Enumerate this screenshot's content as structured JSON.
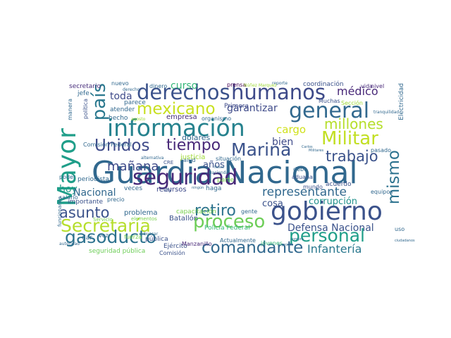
{
  "words": [
    {
      "text": "Guardia Nacional",
      "color": "#31688e"
    },
    {
      "text": "gobierno",
      "color": "#3b528b"
    },
    {
      "text": "información",
      "color": "#26828e"
    },
    {
      "text": "seguridad",
      "color": "#482878"
    },
    {
      "text": "general",
      "color": "#31688e"
    },
    {
      "text": "humanos",
      "color": "#3e4a89"
    },
    {
      "text": "derechos",
      "color": "#3b528b"
    },
    {
      "text": "Militar",
      "color": "#c2df23"
    },
    {
      "text": "Secretaría",
      "color": "#b5de2b"
    },
    {
      "text": "proceso",
      "color": "#6ece58"
    },
    {
      "text": "personal",
      "color": "#1f9e89"
    },
    {
      "text": "Marina",
      "color": "#3b528b"
    },
    {
      "text": "comandante",
      "color": "#31688e"
    },
    {
      "text": "gasoducto",
      "color": "#2c728e"
    },
    {
      "text": "mexicano",
      "color": "#c8e020"
    },
    {
      "text": "Unidos",
      "color": "#3e4a89"
    },
    {
      "text": "Mayor",
      "color": "#1f9e89"
    },
    {
      "text": "país",
      "color": "#2a788e"
    },
    {
      "text": "retiro",
      "color": "#2c728e"
    },
    {
      "text": "trabajo",
      "color": "#3b528b"
    },
    {
      "text": "millones",
      "color": "#b5de2b"
    },
    {
      "text": "mismo",
      "color": "#2c728e"
    },
    {
      "text": "representante",
      "color": "#31688e"
    },
    {
      "text": "asunto",
      "color": "#3b528b"
    },
    {
      "text": "tiempo",
      "color": "#482878"
    },
    {
      "text": "mañana",
      "color": "#3e4a89"
    },
    {
      "text": "Infantería",
      "color": "#2a788e"
    },
    {
      "text": "Defensa Nacional",
      "color": "#3b528b"
    },
    {
      "text": "cargo",
      "color": "#d0e11c"
    },
    {
      "text": "médico",
      "color": "#482878"
    },
    {
      "text": "garantizar",
      "color": "#3e4a89"
    },
    {
      "text": "corrupción",
      "color": "#21918c"
    },
    {
      "text": "curso",
      "color": "#35b779"
    },
    {
      "text": "toda",
      "color": "#3e4a89"
    },
    {
      "text": "bien",
      "color": "#3e4a89"
    },
    {
      "text": "años",
      "color": "#3b528b"
    },
    {
      "text": "cosa",
      "color": "#3b528b"
    },
    {
      "text": "hoy",
      "color": "#1f9e89"
    },
    {
      "text": "Nacional",
      "color": "#31688e"
    },
    {
      "text": "dólares",
      "color": "#31688e"
    },
    {
      "text": "empresa",
      "color": "#472d7b"
    },
    {
      "text": "prensa",
      "color": "#440154"
    },
    {
      "text": "coordinación",
      "color": "#3b528b"
    },
    {
      "text": "vida",
      "color": "#472d7b"
    },
    {
      "text": "nivel",
      "color": "#482878"
    },
    {
      "text": "secretario",
      "color": "#472d7b"
    },
    {
      "text": "nuevo",
      "color": "#31688e"
    },
    {
      "text": "dinero",
      "color": "#31688e"
    },
    {
      "text": "jefe",
      "color": "#31688e"
    },
    {
      "text": "parece",
      "color": "#31688e"
    },
    {
      "text": "atender",
      "color": "#31688e"
    },
    {
      "text": "Primera",
      "color": "#3e4a89"
    },
    {
      "text": "hecho",
      "color": "#31688e"
    },
    {
      "text": "organismo",
      "color": "#31688e"
    },
    {
      "text": "situación",
      "color": "#31688e"
    },
    {
      "text": "periodista",
      "color": "#31688e"
    },
    {
      "text": "recursos",
      "color": "#3e4a89"
    },
    {
      "text": "importante",
      "color": "#3b528b"
    },
    {
      "text": "problema",
      "color": "#31688e"
    },
    {
      "text": "capacitación",
      "color": "#7ad151"
    },
    {
      "text": "Batallón",
      "color": "#3b528b"
    },
    {
      "text": "Policía Federal",
      "color": "#35b779"
    },
    {
      "text": "Ejército",
      "color": "#3b528b"
    },
    {
      "text": "Comisión",
      "color": "#3b528b"
    },
    {
      "text": "seguridad pública",
      "color": "#6ece58"
    },
    {
      "text": "Manzanillo",
      "color": "#482878"
    },
    {
      "text": "Actualmente",
      "color": "#31688e"
    },
    {
      "text": "jóvenes",
      "color": "#35b779"
    },
    {
      "text": "acuerdo",
      "color": "#3b528b"
    },
    {
      "text": "mundo",
      "color": "#3b528b"
    },
    {
      "text": "gente",
      "color": "#31688e"
    },
    {
      "text": "parte",
      "color": "#7ad151"
    },
    {
      "text": "haga",
      "color": "#31688e"
    },
    {
      "text": "ley",
      "color": "#3b528b"
    },
    {
      "text": "veces",
      "color": "#31688e"
    },
    {
      "text": "pública",
      "color": "#3b528b"
    },
    {
      "text": "poder",
      "color": "#31688e"
    },
    {
      "text": "salario",
      "color": "#31688e"
    },
    {
      "text": "equipos",
      "color": "#31688e"
    },
    {
      "text": "uso",
      "color": "#31688e"
    },
    {
      "text": "dar",
      "color": "#31688e"
    },
    {
      "text": "vez",
      "color": "#31688e"
    },
    {
      "text": "fuerza",
      "color": "#7ad151"
    },
    {
      "text": "aduana",
      "color": "#3b528b"
    },
    {
      "text": "debe",
      "color": "#31688e"
    },
    {
      "text": "salud",
      "color": "#31688e"
    },
    {
      "text": "justicia",
      "color": "#a0da39"
    },
    {
      "text": "Electricidad",
      "color": "#31688e"
    },
    {
      "text": "Comisión Federal",
      "color": "#31688e"
    },
    {
      "text": "funcionarios",
      "color": "#31688e"
    },
    {
      "text": "manera",
      "color": "#31688e"
    },
    {
      "text": "política",
      "color": "#3b528b"
    },
    {
      "text": "Muchas",
      "color": "#3b528b"
    },
    {
      "text": "Sección",
      "color": "#a0da39"
    },
    {
      "text": "pasado",
      "color": "#31688e"
    },
    {
      "text": "CRE",
      "color": "#3b528b"
    },
    {
      "text": "precio",
      "color": "#31688e"
    },
    {
      "text": "elementos",
      "color": "#7ad151"
    },
    {
      "text": "Servicio",
      "color": "#7ad151"
    },
    {
      "text": "autoridad",
      "color": "#31688e"
    },
    {
      "text": "Hacienda",
      "color": "#31688e"
    },
    {
      "text": "agosto",
      "color": "#a0da39"
    },
    {
      "text": "derecho",
      "color": "#31688e"
    },
    {
      "text": "reporte",
      "color": "#31688e"
    },
    {
      "text": "tranquilidad",
      "color": "#31688e"
    },
    {
      "text": "Carlos",
      "color": "#31688e"
    },
    {
      "text": "Militares",
      "color": "#31688e"
    },
    {
      "text": "ciudadanos",
      "color": "#31688e"
    },
    {
      "text": "alternativa",
      "color": "#31688e"
    },
    {
      "text": "buscar",
      "color": "#31688e"
    },
    {
      "text": "pronto",
      "color": "#31688e"
    },
    {
      "text": "Naval",
      "color": "#31688e"
    },
    {
      "text": "ningún",
      "color": "#31688e"
    },
    {
      "text": "compra",
      "color": "#31688e"
    },
    {
      "text": "Núñez Marquez",
      "color": "#a0da39"
    }
  ]
}
